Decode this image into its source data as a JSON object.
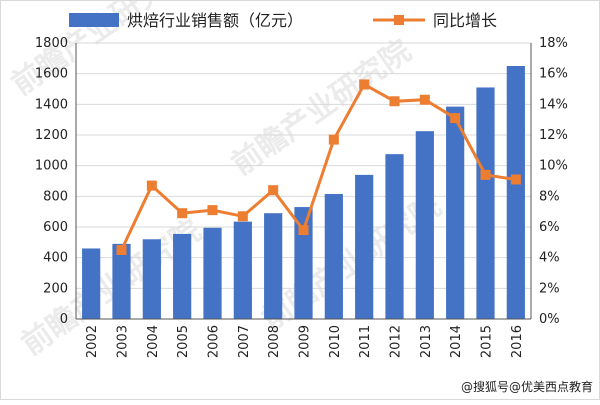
{
  "colors": {
    "bar": "#4472C4",
    "line": "#ED7D31",
    "grid": "#d9d9d9",
    "axis": "#555555"
  },
  "footer": {
    "credit": "@搜狐号@优美西点教育"
  },
  "watermark": {
    "text": "前瞻产业研究院"
  },
  "chart_data": {
    "type": "bar",
    "title": "",
    "xlabel": "",
    "categories": [
      "2002",
      "2003",
      "2004",
      "2005",
      "2006",
      "2007",
      "2008",
      "2009",
      "2010",
      "2011",
      "2012",
      "2013",
      "2014",
      "2015",
      "2016"
    ],
    "legend_position": "top",
    "grid": true,
    "series": [
      {
        "name": "烘焙行业销售额（亿元）",
        "type": "bar",
        "axis": "left",
        "values": [
          460,
          490,
          520,
          555,
          595,
          635,
          690,
          730,
          815,
          940,
          1075,
          1225,
          1385,
          1510,
          1650
        ]
      },
      {
        "name": "同比增长",
        "type": "line",
        "axis": "right",
        "unit": "%",
        "values": [
          null,
          4.5,
          8.7,
          6.9,
          7.1,
          6.7,
          8.4,
          5.8,
          11.7,
          15.3,
          14.2,
          14.3,
          13.1,
          9.4,
          9.1
        ]
      }
    ],
    "ylim_left": [
      0,
      1800
    ],
    "yticks_left": [
      "0",
      "200",
      "400",
      "600",
      "800",
      "1000",
      "1200",
      "1400",
      "1600",
      "1800"
    ],
    "ylim_right": [
      0,
      18
    ],
    "yticks_right": [
      "0%",
      "2%",
      "4%",
      "6%",
      "8%",
      "10%",
      "12%",
      "14%",
      "16%",
      "18%"
    ]
  }
}
